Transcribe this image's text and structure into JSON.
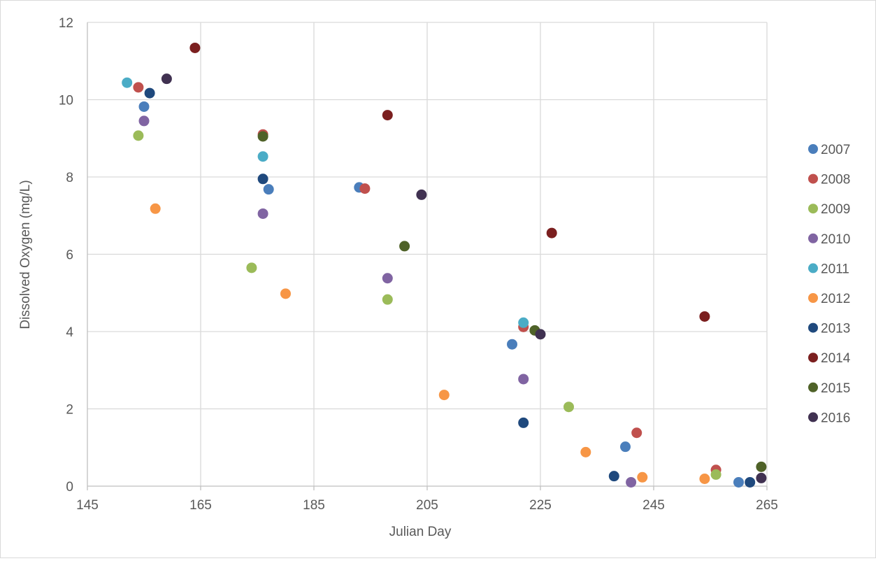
{
  "chart_data": {
    "type": "scatter",
    "xlabel": "Julian Day",
    "ylabel": "Dissolved Oxygen (mg/L)",
    "xlim": [
      145,
      265
    ],
    "ylim": [
      0,
      12
    ],
    "x_ticks": [
      145,
      165,
      185,
      205,
      225,
      245,
      265
    ],
    "y_ticks": [
      0,
      2,
      4,
      6,
      8,
      10,
      12
    ],
    "grid": true,
    "legend_position": "right",
    "series": [
      {
        "name": "2007",
        "color": "#4a7ebb",
        "points": [
          [
            155,
            9.82
          ],
          [
            177,
            7.68
          ],
          [
            193,
            7.73
          ],
          [
            220,
            3.67
          ],
          [
            240,
            1.02
          ],
          [
            260,
            0.1
          ]
        ]
      },
      {
        "name": "2008",
        "color": "#c0504d",
        "points": [
          [
            154,
            10.32
          ],
          [
            176,
            9.1
          ],
          [
            194,
            7.7
          ],
          [
            222,
            4.12
          ],
          [
            242,
            1.38
          ],
          [
            256,
            0.42
          ]
        ]
      },
      {
        "name": "2009",
        "color": "#9bbb59",
        "points": [
          [
            154,
            9.07
          ],
          [
            174,
            5.65
          ],
          [
            198,
            4.83
          ],
          [
            230,
            2.05
          ],
          [
            256,
            0.3
          ]
        ]
      },
      {
        "name": "2010",
        "color": "#8064a2",
        "points": [
          [
            155,
            9.45
          ],
          [
            176,
            7.05
          ],
          [
            198,
            5.38
          ],
          [
            222,
            2.77
          ],
          [
            241,
            0.1
          ]
        ]
      },
      {
        "name": "2011",
        "color": "#4bacc6",
        "points": [
          [
            152,
            10.44
          ],
          [
            176,
            8.53
          ],
          [
            222,
            4.23
          ]
        ]
      },
      {
        "name": "2012",
        "color": "#f79646",
        "points": [
          [
            157,
            7.18
          ],
          [
            180,
            4.98
          ],
          [
            208,
            2.36
          ],
          [
            233,
            0.88
          ],
          [
            243,
            0.23
          ],
          [
            254,
            0.19
          ]
        ]
      },
      {
        "name": "2013",
        "color": "#1f497d",
        "points": [
          [
            156,
            10.17
          ],
          [
            176,
            7.95
          ],
          [
            222,
            1.64
          ],
          [
            238,
            0.26
          ],
          [
            262,
            0.1
          ]
        ]
      },
      {
        "name": "2014",
        "color": "#7b1f1f",
        "points": [
          [
            164,
            11.34
          ],
          [
            198,
            9.6
          ],
          [
            227,
            6.55
          ],
          [
            254,
            4.39
          ]
        ]
      },
      {
        "name": "2015",
        "color": "#4f6228",
        "points": [
          [
            176,
            9.05
          ],
          [
            201,
            6.21
          ],
          [
            224,
            4.03
          ],
          [
            264,
            0.5
          ]
        ]
      },
      {
        "name": "2016",
        "color": "#403151",
        "points": [
          [
            159,
            10.54
          ],
          [
            204,
            7.54
          ],
          [
            225,
            3.93
          ],
          [
            264,
            0.21
          ]
        ]
      }
    ]
  }
}
